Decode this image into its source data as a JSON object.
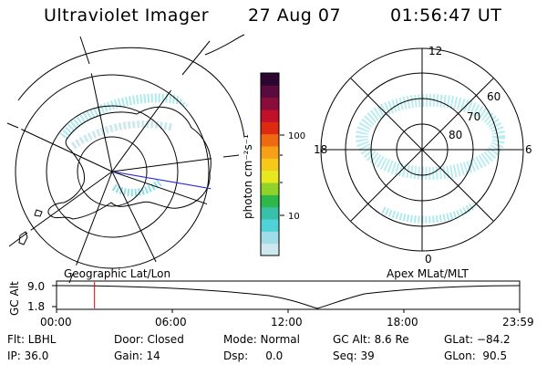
{
  "header": {
    "title": "Ultraviolet Imager",
    "date": "27 Aug 07",
    "time": "01:56:47 UT"
  },
  "left_map": {
    "caption": "Geographic Lat/Lon"
  },
  "right_map": {
    "caption": "Apex MLat/MLT",
    "mlt_labels": [
      "12",
      "18",
      "6",
      "0"
    ],
    "mlat_labels": [
      "60",
      "70",
      "80"
    ]
  },
  "colorbar": {
    "unit_label": "photon cm⁻²s⁻¹",
    "ticks": [
      "100",
      "10"
    ],
    "colors": [
      "#cfe8ee",
      "#9fdde8",
      "#4fd2d8",
      "#38c0a8",
      "#2fb84a",
      "#8fd22a",
      "#e8e81e",
      "#f5c81a",
      "#f5a016",
      "#ee6a12",
      "#dd2a10",
      "#c0102a",
      "#8a0c3a",
      "#5a0a3e",
      "#2a0630"
    ]
  },
  "timeline": {
    "ylabel": "GC Alt",
    "yticks": [
      "9.0",
      "1.8"
    ],
    "xticks": [
      "00:00",
      "06:00",
      "12:00",
      "18:00",
      "23:59"
    ],
    "marker_time_fraction": 0.082,
    "marker_color": "#d40000"
  },
  "status": {
    "row1": [
      "Flt: LBHL",
      "Door: Closed",
      "Mode: Normal",
      "GC Alt: 8.6 Re",
      "GLat: −84.2"
    ],
    "row2": [
      "IP: 36.0",
      "Gain: 14",
      "Dsp:     0.0",
      "Seq: 39",
      "GLon:  90.5"
    ]
  },
  "colors": {
    "aurora": "#8ddfe6",
    "blue_line": "#2a2ad4"
  }
}
